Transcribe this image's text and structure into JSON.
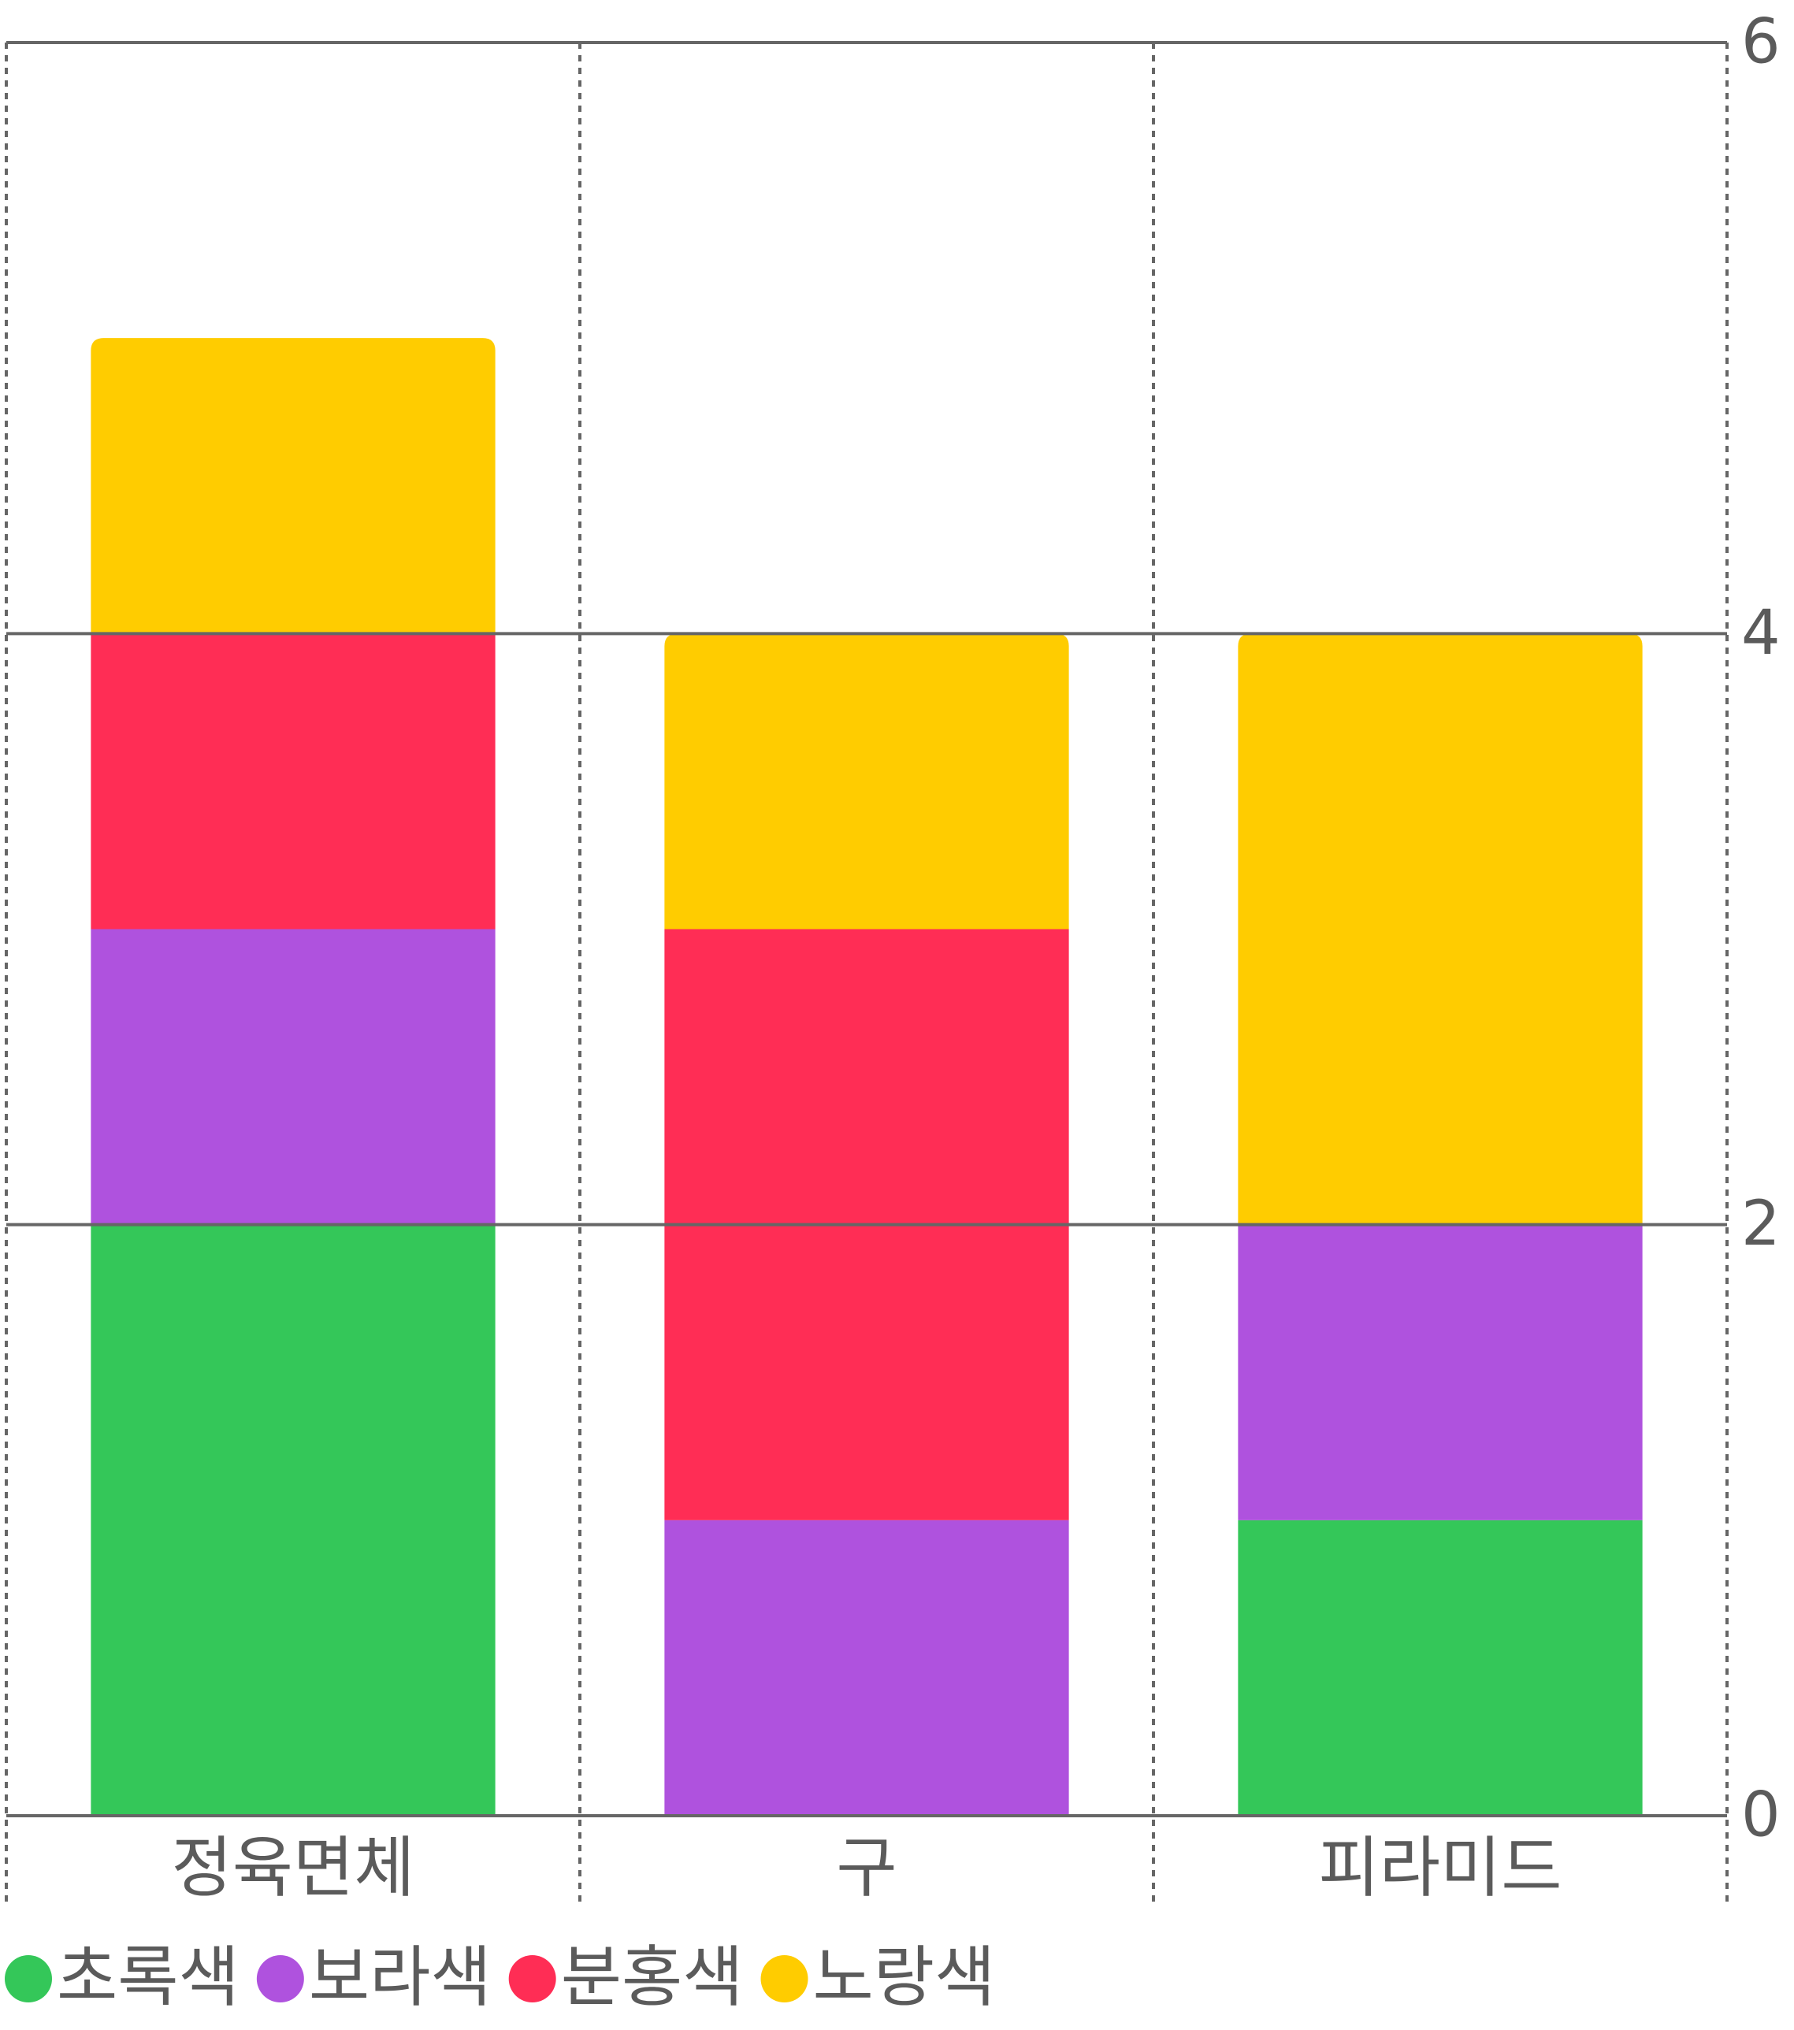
{
  "chart_data": {
    "type": "stacked_bar",
    "categories": [
      "정육면체",
      "구",
      "피라미드"
    ],
    "series": [
      {
        "name": "초록색",
        "color": "#34c759",
        "values": [
          2,
          0,
          1
        ]
      },
      {
        "name": "보라색",
        "color": "#af52de",
        "values": [
          1,
          1,
          1
        ]
      },
      {
        "name": "분홍색",
        "color": "#ff2d55",
        "values": [
          1,
          2,
          0
        ]
      },
      {
        "name": "노랑색",
        "color": "#ffcc00",
        "values": [
          1,
          1,
          2
        ]
      }
    ],
    "ylim": [
      0,
      6
    ],
    "yticks": [
      0,
      2,
      4,
      6
    ],
    "grid": true,
    "legend": "bottom-left"
  }
}
